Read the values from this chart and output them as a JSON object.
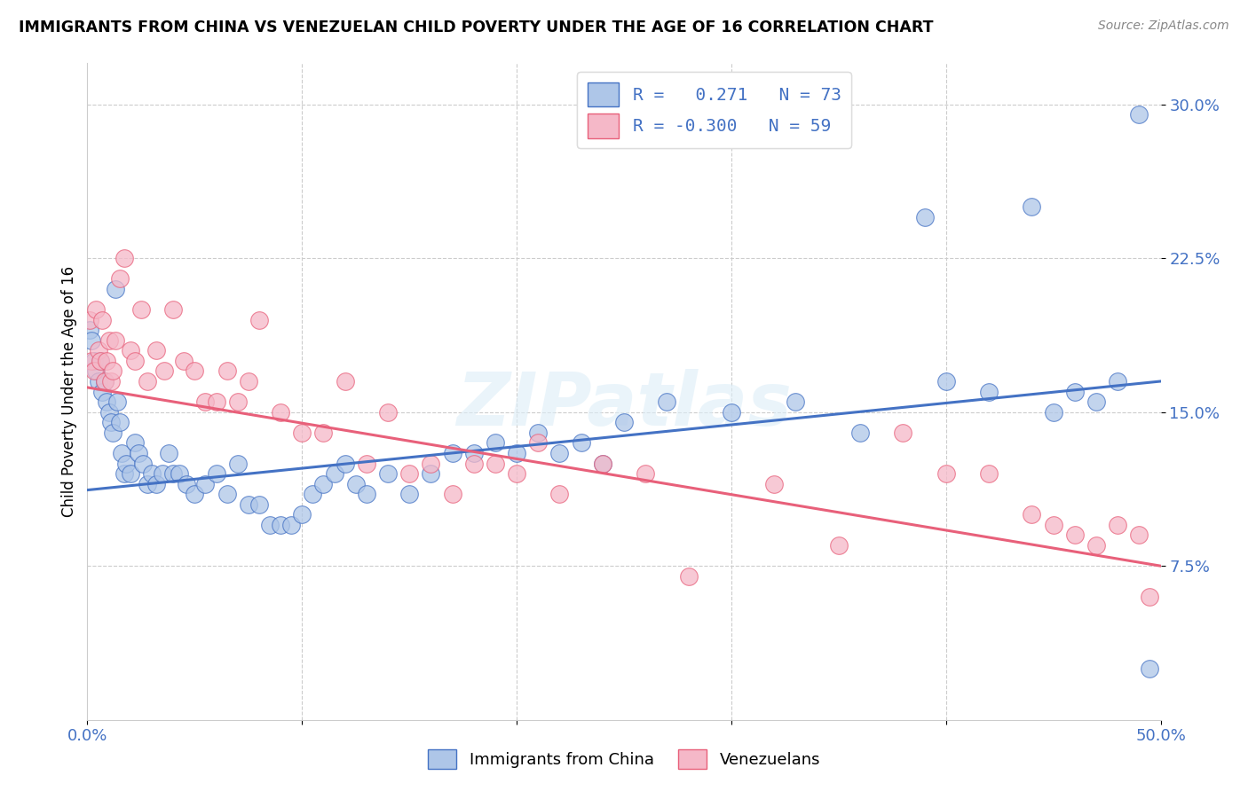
{
  "title": "IMMIGRANTS FROM CHINA VS VENEZUELAN CHILD POVERTY UNDER THE AGE OF 16 CORRELATION CHART",
  "source": "Source: ZipAtlas.com",
  "ylabel": "Child Poverty Under the Age of 16",
  "y_ticks": [
    0.075,
    0.15,
    0.225,
    0.3
  ],
  "y_tick_labels": [
    "7.5%",
    "15.0%",
    "22.5%",
    "30.0%"
  ],
  "x_ticks": [
    0.0,
    0.1,
    0.2,
    0.3,
    0.4,
    0.5
  ],
  "x_tick_labels": [
    "0.0%",
    "",
    "",
    "",
    "",
    "50.0%"
  ],
  "x_min": 0.0,
  "x_max": 0.5,
  "y_min": 0.0,
  "y_max": 0.32,
  "r_china": 0.271,
  "n_china": 73,
  "r_venezuela": -0.3,
  "n_venezuela": 59,
  "color_china": "#aec6e8",
  "color_venezuela": "#f5b8c8",
  "line_color_china": "#4472c4",
  "line_color_venezuela": "#e8607a",
  "watermark": "ZIPatlas",
  "legend_label_china": "Immigrants from China",
  "legend_label_venezuela": "Venezuelans",
  "china_trend_x0": 0.0,
  "china_trend_y0": 0.112,
  "china_trend_x1": 0.5,
  "china_trend_y1": 0.165,
  "venezuela_trend_x0": 0.0,
  "venezuela_trend_y0": 0.162,
  "venezuela_trend_x1": 0.5,
  "venezuela_trend_y1": 0.075,
  "china_x": [
    0.001,
    0.002,
    0.003,
    0.004,
    0.005,
    0.006,
    0.007,
    0.008,
    0.009,
    0.01,
    0.011,
    0.012,
    0.013,
    0.014,
    0.015,
    0.016,
    0.017,
    0.018,
    0.02,
    0.022,
    0.024,
    0.026,
    0.028,
    0.03,
    0.032,
    0.035,
    0.038,
    0.04,
    0.043,
    0.046,
    0.05,
    0.055,
    0.06,
    0.065,
    0.07,
    0.075,
    0.08,
    0.085,
    0.09,
    0.095,
    0.1,
    0.105,
    0.11,
    0.115,
    0.12,
    0.125,
    0.13,
    0.14,
    0.15,
    0.16,
    0.17,
    0.18,
    0.19,
    0.2,
    0.21,
    0.22,
    0.23,
    0.24,
    0.25,
    0.27,
    0.3,
    0.33,
    0.36,
    0.39,
    0.4,
    0.42,
    0.44,
    0.45,
    0.46,
    0.47,
    0.48,
    0.49,
    0.495
  ],
  "china_y": [
    0.19,
    0.185,
    0.175,
    0.17,
    0.165,
    0.175,
    0.16,
    0.165,
    0.155,
    0.15,
    0.145,
    0.14,
    0.21,
    0.155,
    0.145,
    0.13,
    0.12,
    0.125,
    0.12,
    0.135,
    0.13,
    0.125,
    0.115,
    0.12,
    0.115,
    0.12,
    0.13,
    0.12,
    0.12,
    0.115,
    0.11,
    0.115,
    0.12,
    0.11,
    0.125,
    0.105,
    0.105,
    0.095,
    0.095,
    0.095,
    0.1,
    0.11,
    0.115,
    0.12,
    0.125,
    0.115,
    0.11,
    0.12,
    0.11,
    0.12,
    0.13,
    0.13,
    0.135,
    0.13,
    0.14,
    0.13,
    0.135,
    0.125,
    0.145,
    0.155,
    0.15,
    0.155,
    0.14,
    0.245,
    0.165,
    0.16,
    0.25,
    0.15,
    0.16,
    0.155,
    0.165,
    0.295,
    0.025
  ],
  "venezuela_x": [
    0.001,
    0.002,
    0.003,
    0.004,
    0.005,
    0.006,
    0.007,
    0.008,
    0.009,
    0.01,
    0.011,
    0.012,
    0.013,
    0.015,
    0.017,
    0.02,
    0.022,
    0.025,
    0.028,
    0.032,
    0.036,
    0.04,
    0.045,
    0.05,
    0.055,
    0.06,
    0.065,
    0.07,
    0.075,
    0.08,
    0.09,
    0.1,
    0.11,
    0.12,
    0.13,
    0.14,
    0.15,
    0.16,
    0.17,
    0.18,
    0.19,
    0.2,
    0.21,
    0.22,
    0.24,
    0.26,
    0.28,
    0.32,
    0.35,
    0.38,
    0.4,
    0.42,
    0.44,
    0.45,
    0.46,
    0.47,
    0.48,
    0.49,
    0.495
  ],
  "venezuela_y": [
    0.195,
    0.175,
    0.17,
    0.2,
    0.18,
    0.175,
    0.195,
    0.165,
    0.175,
    0.185,
    0.165,
    0.17,
    0.185,
    0.215,
    0.225,
    0.18,
    0.175,
    0.2,
    0.165,
    0.18,
    0.17,
    0.2,
    0.175,
    0.17,
    0.155,
    0.155,
    0.17,
    0.155,
    0.165,
    0.195,
    0.15,
    0.14,
    0.14,
    0.165,
    0.125,
    0.15,
    0.12,
    0.125,
    0.11,
    0.125,
    0.125,
    0.12,
    0.135,
    0.11,
    0.125,
    0.12,
    0.07,
    0.115,
    0.085,
    0.14,
    0.12,
    0.12,
    0.1,
    0.095,
    0.09,
    0.085,
    0.095,
    0.09,
    0.06
  ]
}
